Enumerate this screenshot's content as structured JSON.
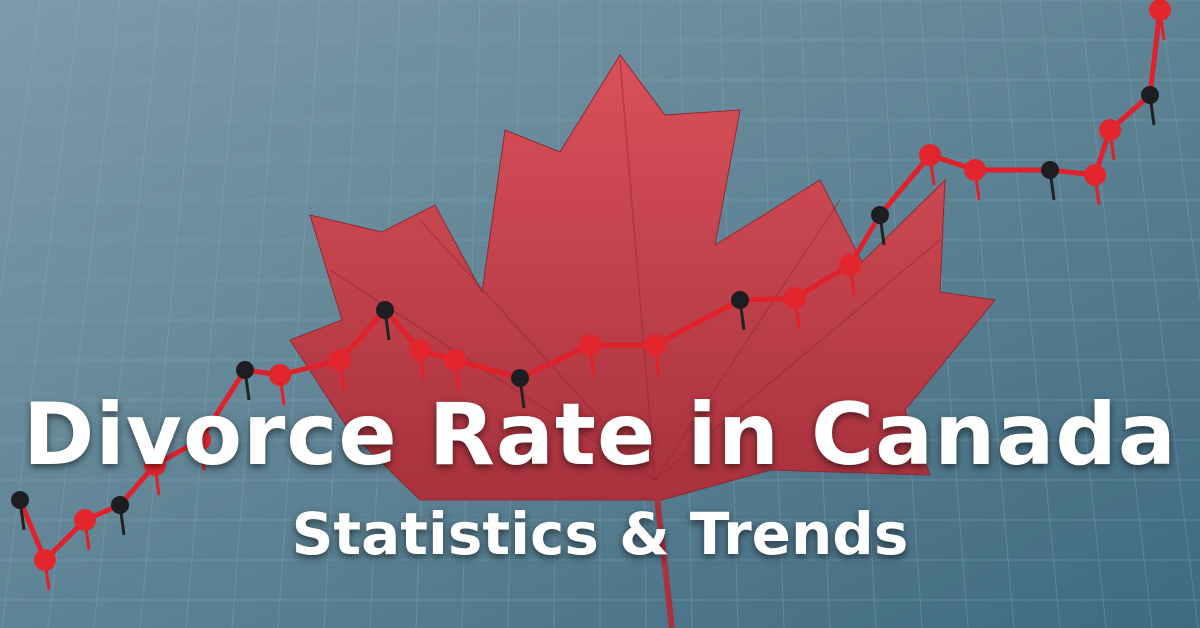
{
  "headline": {
    "title": "Divorce Rate in Canada",
    "subtitle": "Statistics & Trends"
  },
  "colors": {
    "background": "#5f8293",
    "leaf": "#c9424d",
    "line": "#e0202a",
    "text": "#ffffff"
  }
}
